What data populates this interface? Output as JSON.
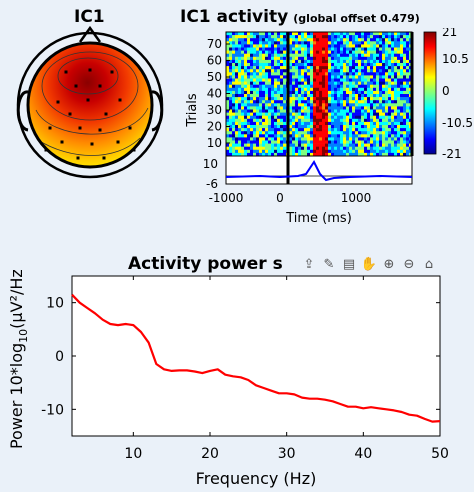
{
  "topo": {
    "title": "IC1"
  },
  "activity": {
    "title": "IC1 activity",
    "subtitle": "(global offset 0.479)",
    "ylabel": "Trials",
    "yticks": [
      "70",
      "60",
      "50",
      "40",
      "30",
      "20",
      "10"
    ],
    "colorbar_ticks": [
      "21",
      "10.5",
      "0",
      "-10.5",
      "-21"
    ],
    "erp_ticks": [
      "10",
      "-6"
    ],
    "xticks": [
      "-1000",
      "0",
      "1000"
    ],
    "xlabel": "Time (ms)"
  },
  "toolbar": {
    "icons": [
      "export-icon",
      "brush-icon",
      "data-tips-icon",
      "pan-icon",
      "zoom-in-icon",
      "zoom-out-icon",
      "home-icon"
    ]
  },
  "chart_data": {
    "type": "line",
    "title": "Activity power s",
    "xlabel": "Frequency (Hz)",
    "ylabel_prefix": "Power 10*log",
    "ylabel_sub": "10",
    "ylabel_suffix": "(μV²/Hz)",
    "xlim": [
      2,
      50
    ],
    "ylim": [
      -15,
      15
    ],
    "xticks": [
      10,
      20,
      30,
      40,
      50
    ],
    "yticks": [
      10,
      0,
      -10
    ],
    "color": "#ff0000",
    "series": [
      {
        "x": [
          2,
          3,
          4,
          5,
          6,
          7,
          8,
          9,
          10,
          11,
          12,
          13,
          14,
          15,
          16,
          17,
          18,
          19,
          20,
          21,
          22,
          23,
          24,
          25,
          26,
          27,
          28,
          29,
          30,
          31,
          32,
          33,
          34,
          35,
          36,
          37,
          38,
          39,
          40,
          41,
          42,
          43,
          44,
          45,
          46,
          47,
          48,
          49,
          50
        ],
        "y": [
          11.5,
          10,
          9,
          8,
          6.8,
          6,
          5.8,
          6,
          5.8,
          4.5,
          2.5,
          -1.5,
          -2.5,
          -2.8,
          -2.7,
          -2.7,
          -2.9,
          -3.2,
          -2.8,
          -2.5,
          -3.5,
          -3.8,
          -4,
          -4.5,
          -5.5,
          -6,
          -6.5,
          -7,
          -7,
          -7.2,
          -7.8,
          -8,
          -8,
          -8.2,
          -8.5,
          -9,
          -9.5,
          -9.5,
          -9.8,
          -9.6,
          -9.8,
          -10,
          -10.2,
          -10.5,
          -11,
          -11.2,
          -11.8,
          -12.3,
          -12.2
        ]
      }
    ]
  }
}
